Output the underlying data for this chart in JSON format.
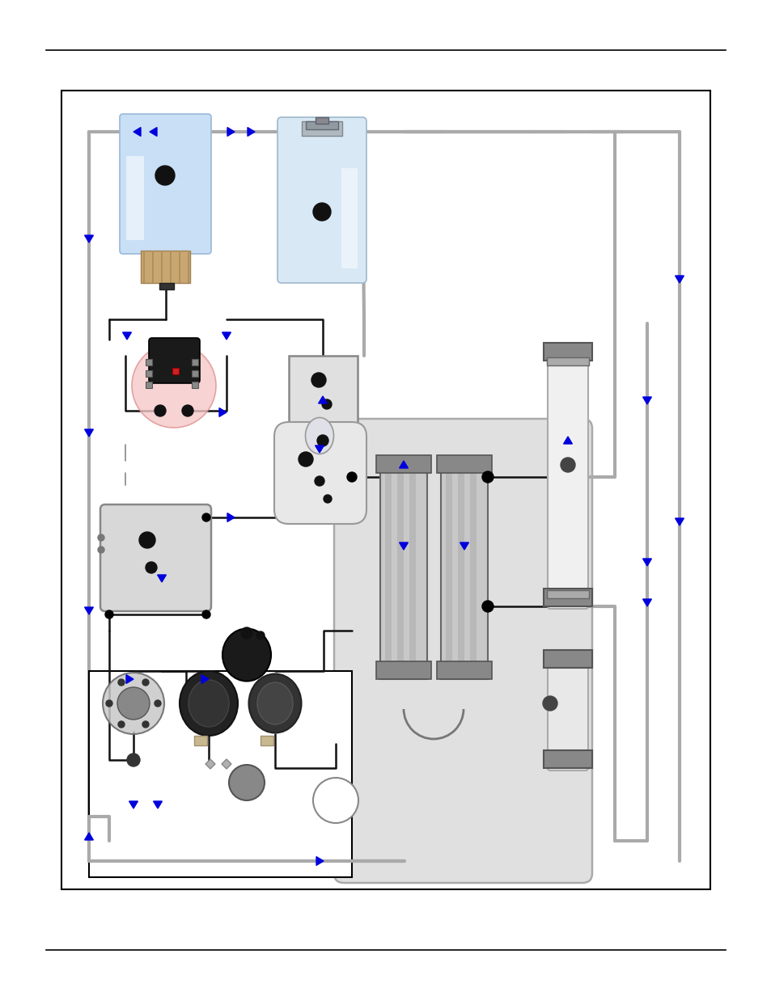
{
  "figure_width": 9.54,
  "figure_height": 12.27,
  "dpi": 100,
  "background": "#ffffff",
  "flow_blue": "#0000dd",
  "gray_tube": "#aaaaaa",
  "black_tube": "#111111",
  "light_gray_tube": "#cccccc"
}
